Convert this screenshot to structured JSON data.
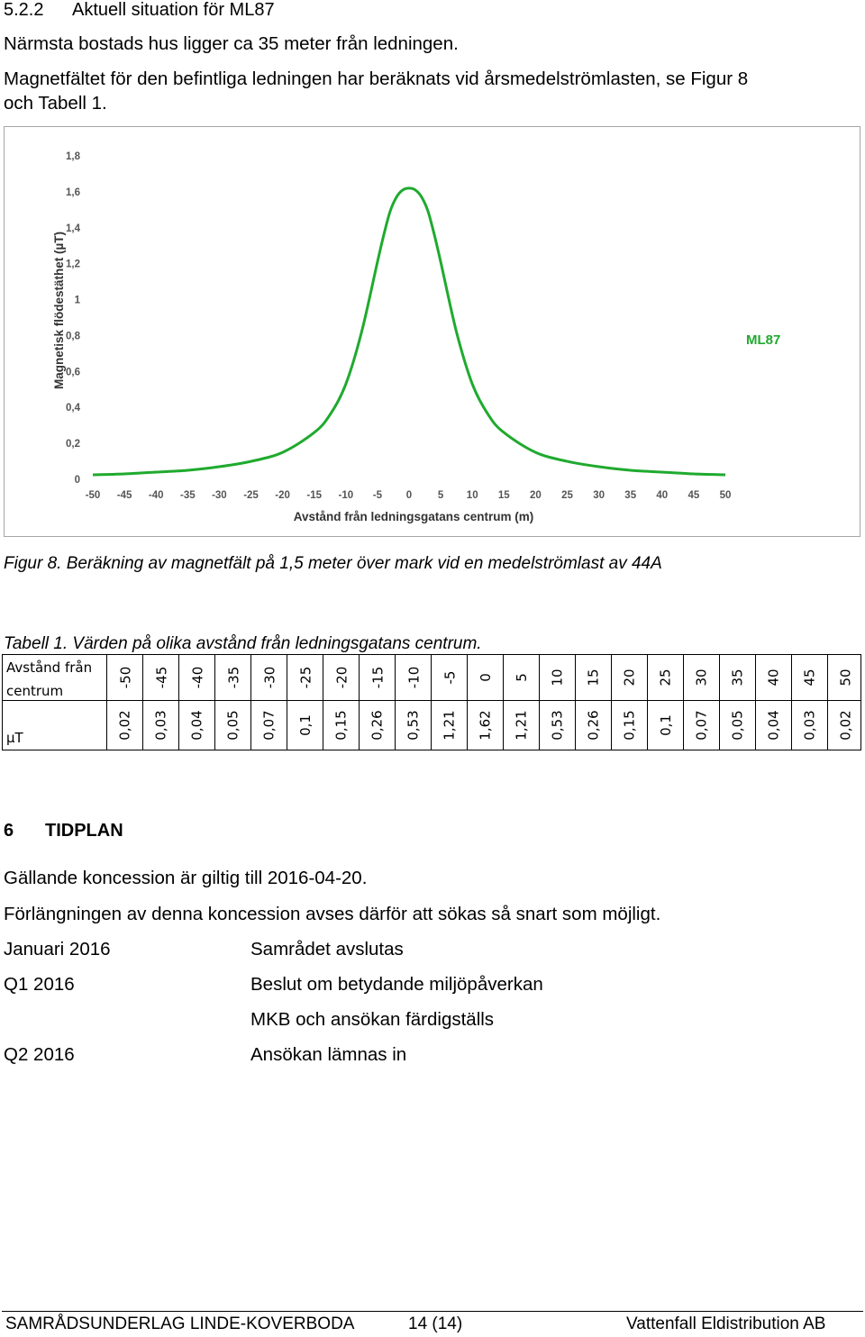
{
  "section": {
    "number": "5.2.2",
    "title": "Aktuell situation för ML87"
  },
  "paragraphs": {
    "p1": "Närmsta bostads hus ligger ca 35 meter från ledningen.",
    "p2_line1": "Magnetfältet för den befintliga ledningen har beräknats vid årsmedelströmlasten, se Figur 8",
    "p2_line2": "och Tabell 1."
  },
  "figure": {
    "caption": "Figur 8. Beräkning av magnetfält på 1,5 meter över mark vid en medelströmlast av 44A"
  },
  "chart_data": {
    "type": "line",
    "title": "",
    "xlabel": "Avstånd från ledningsgatans centrum (m)",
    "ylabel": "Magnetisk flödestäthet (µT)",
    "annotation": "ML87",
    "xlim": [
      -50,
      50
    ],
    "ylim": [
      0,
      1.8
    ],
    "xticks": [
      "-50",
      "-45",
      "-40",
      "-35",
      "-30",
      "-25",
      "-20",
      "-15",
      "-10",
      "-5",
      "0",
      "5",
      "10",
      "15",
      "20",
      "25",
      "30",
      "35",
      "40",
      "45",
      "50"
    ],
    "yticks": [
      "0",
      "0,2",
      "0,4",
      "0,6",
      "0,8",
      "1",
      "1,2",
      "1,4",
      "1,6",
      "1,8"
    ],
    "grid": false,
    "legend": "none",
    "color": "#1faa2e",
    "series": [
      {
        "x": [
          -50,
          -45,
          -40,
          -35,
          -30,
          -25,
          -20,
          -15,
          -12.5,
          -10,
          -7.5,
          -5,
          -4,
          -3,
          -2,
          -1,
          0,
          1,
          2,
          3,
          4,
          5,
          7.5,
          10,
          12.5,
          15,
          20,
          25,
          30,
          35,
          40,
          45,
          50
        ],
        "y": [
          0.025,
          0.03,
          0.04,
          0.05,
          0.07,
          0.1,
          0.15,
          0.26,
          0.36,
          0.53,
          0.82,
          1.21,
          1.36,
          1.49,
          1.57,
          1.61,
          1.62,
          1.61,
          1.57,
          1.49,
          1.36,
          1.21,
          0.82,
          0.53,
          0.36,
          0.26,
          0.15,
          0.1,
          0.07,
          0.05,
          0.04,
          0.03,
          0.025
        ]
      }
    ]
  },
  "table": {
    "caption": "Tabell 1. Värden på olika avstånd från ledningsgatans centrum.",
    "row1_label": "Avstånd från centrum",
    "row2_label": "µT",
    "distances": [
      "-50",
      "-45",
      "-40",
      "-35",
      "-30",
      "-25",
      "-20",
      "-15",
      "-10",
      "-5",
      "0",
      "5",
      "10",
      "15",
      "20",
      "25",
      "30",
      "35",
      "40",
      "45",
      "50"
    ],
    "values": [
      "0,02",
      "0,03",
      "0,04",
      "0,05",
      "0,07",
      "0,1",
      "0,15",
      "0,26",
      "0,53",
      "1,21",
      "1,62",
      "1,21",
      "0,53",
      "0,26",
      "0,15",
      "0,1",
      "0,07",
      "0,05",
      "0,04",
      "0,03",
      "0,02"
    ]
  },
  "section6": {
    "number": "6",
    "title": "TIDPLAN",
    "p1": "Gällande koncession är giltig till 2016-04-20.",
    "p2": "Förlängningen av denna koncession avses därför att sökas så snart som möjligt.",
    "schedule": [
      {
        "when": "Januari 2016",
        "what": "Samrådet avslutas"
      },
      {
        "when": "Q1 2016",
        "what": "Beslut om betydande miljöpåverkan"
      },
      {
        "when": "",
        "what": "MKB och ansökan färdigställs"
      },
      {
        "when": "Q2 2016",
        "what": "Ansökan lämnas in"
      }
    ]
  },
  "footer": {
    "left": "SAMRÅDSUNDERLAG LINDE-KOVERBODA",
    "page": "14 (14)",
    "right": "Vattenfall Eldistribution AB"
  }
}
